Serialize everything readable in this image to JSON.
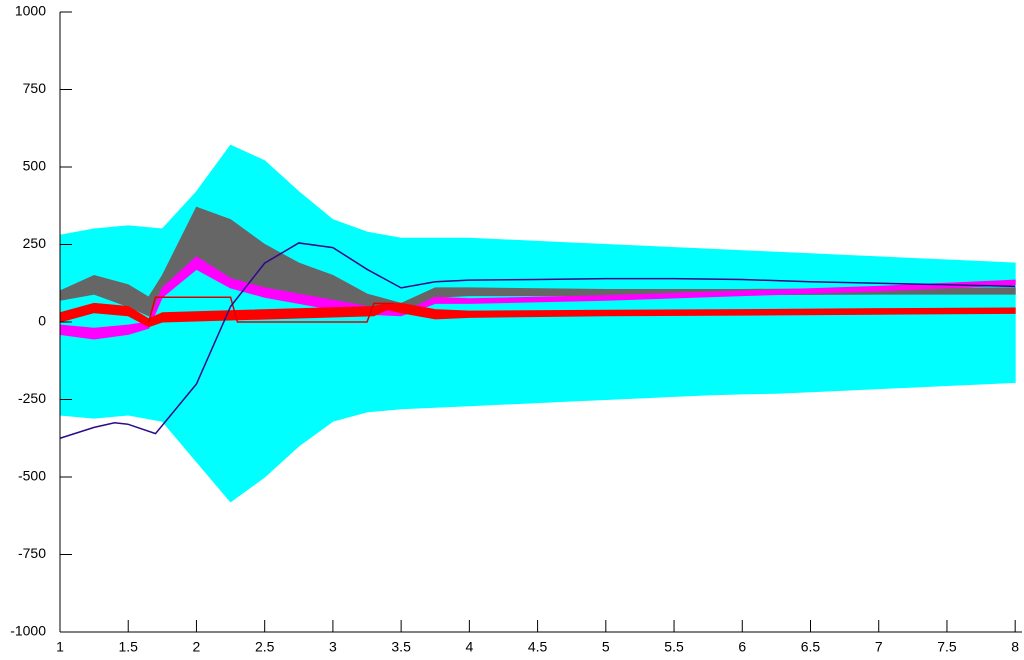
{
  "chart_data": {
    "type": "line",
    "xlim": [
      1,
      8.05
    ],
    "ylim": [
      -1000,
      1000
    ],
    "xticks": [
      1,
      1.5,
      2,
      2.5,
      3,
      3.5,
      4,
      4.5,
      5,
      5.5,
      6,
      6.5,
      7,
      7.5,
      8
    ],
    "yticks": [
      -1000,
      -750,
      -500,
      -250,
      0,
      250,
      500,
      750,
      1000
    ],
    "series": [
      {
        "color": "#00ffff",
        "x": [
          1,
          1.25,
          1.5,
          1.75,
          2,
          2.25,
          2.5,
          2.75,
          3,
          3.25,
          3.5,
          3.75,
          4,
          4.25,
          4.5,
          4.75,
          5,
          5.25,
          5.5,
          5.75,
          6,
          6.25,
          6.5,
          6.75,
          7,
          7.25,
          7.5,
          7.75,
          8
        ],
        "values": [
          280,
          300,
          310,
          300,
          420,
          570,
          520,
          420,
          330,
          290,
          270,
          270,
          270,
          265,
          260,
          255,
          250,
          245,
          240,
          235,
          230,
          225,
          220,
          215,
          210,
          205,
          200,
          195,
          190
        ],
        "lower": [
          -300,
          -310,
          -300,
          -320,
          -450,
          -580,
          -500,
          -400,
          -320,
          -290,
          -280,
          -275,
          -270,
          -265,
          -260,
          -255,
          -250,
          -245,
          -240,
          -235,
          -232,
          -230,
          -225,
          -220,
          -215,
          -210,
          -205,
          -200,
          -195
        ]
      },
      {
        "color": "#666666",
        "x": [
          1,
          1.25,
          1.5,
          1.65,
          1.75,
          2,
          2.25,
          2.5,
          2.75,
          3,
          3.25,
          3.5,
          3.75,
          4,
          5,
          6,
          7,
          8
        ],
        "values": [
          100,
          150,
          120,
          80,
          150,
          370,
          330,
          250,
          190,
          150,
          90,
          60,
          110,
          110,
          105,
          105,
          108,
          110
        ],
        "lower": [
          70,
          90,
          50,
          20,
          80,
          200,
          140,
          100,
          70,
          50,
          30,
          30,
          80,
          85,
          85,
          88,
          90,
          90
        ]
      },
      {
        "color": "#ff00ff",
        "x": [
          1,
          1.25,
          1.5,
          1.65,
          1.75,
          2,
          2.25,
          2.5,
          2.75,
          3,
          3.25,
          3.5,
          3.75,
          4,
          5,
          6,
          7,
          8
        ],
        "values": [
          -10,
          -20,
          -10,
          0,
          110,
          210,
          140,
          110,
          90,
          70,
          50,
          30,
          80,
          75,
          85,
          100,
          115,
          135
        ],
        "lower": [
          -40,
          -55,
          -40,
          -20,
          80,
          170,
          110,
          80,
          60,
          40,
          25,
          20,
          60,
          60,
          70,
          85,
          100,
          120
        ]
      },
      {
        "color": "#ff0000",
        "x": [
          1,
          1.25,
          1.5,
          1.65,
          1.75,
          3.3,
          3.4,
          3.5,
          3.75,
          4,
          5,
          6,
          7,
          8
        ],
        "values": [
          30,
          60,
          50,
          10,
          30,
          50,
          60,
          60,
          40,
          35,
          38,
          40,
          43,
          45
        ],
        "lower": [
          0,
          30,
          20,
          -15,
          0,
          20,
          40,
          30,
          10,
          15,
          20,
          22,
          25,
          28
        ]
      },
      {
        "color": "#dd0000",
        "x": [
          1.65,
          1.7,
          2.25,
          2.3,
          3.25,
          3.3,
          3.45
        ],
        "values": [
          0,
          80,
          80,
          0,
          0,
          60,
          60
        ]
      },
      {
        "color": "#2a0a8a",
        "x": [
          1,
          1.25,
          1.4,
          1.5,
          1.7,
          2,
          2.25,
          2.5,
          2.75,
          3,
          3.25,
          3.5,
          3.75,
          4,
          4.5,
          5,
          5.5,
          6,
          6.5,
          7,
          7.5,
          8
        ],
        "values": [
          -375,
          -340,
          -325,
          -330,
          -360,
          -200,
          50,
          190,
          255,
          240,
          170,
          110,
          130,
          135,
          137,
          140,
          140,
          137,
          130,
          125,
          120,
          115
        ]
      }
    ]
  }
}
